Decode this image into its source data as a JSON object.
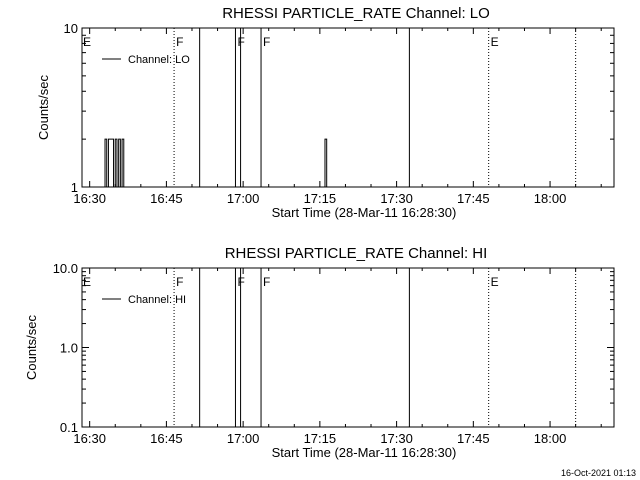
{
  "chart_data": [
    {
      "type": "line",
      "title": "RHESSI PARTICLE_RATE Channel: LO",
      "xlabel": "Start Time (28-Mar-11 16:28:30)",
      "ylabel": "Counts/sec",
      "ylog": true,
      "ylim": [
        1,
        10
      ],
      "xlim": [
        "16:28:30",
        "18:12:30"
      ],
      "x_tick_labels": [
        "16:30",
        "16:45",
        "17:00",
        "17:15",
        "17:30",
        "17:45",
        "18:00"
      ],
      "y_tick_labels": [
        "1",
        "10"
      ],
      "legend": {
        "placement": "top-left",
        "entries": [
          "Channel: LO"
        ]
      },
      "series": [
        {
          "name": "Channel: LO",
          "points": [
            [
              "16:33:00",
              1
            ],
            [
              "16:33:00",
              2
            ],
            [
              "16:33:20",
              2
            ],
            [
              "16:33:20",
              1
            ],
            [
              "16:33:40",
              1
            ],
            [
              "16:33:40",
              2
            ],
            [
              "16:34:40",
              2
            ],
            [
              "16:34:40",
              1
            ],
            [
              "16:35:00",
              1
            ],
            [
              "16:35:00",
              2
            ],
            [
              "16:35:20",
              2
            ],
            [
              "16:35:20",
              1
            ],
            [
              "16:35:40",
              1
            ],
            [
              "16:35:40",
              2
            ],
            [
              "16:36:00",
              2
            ],
            [
              "16:36:00",
              1
            ],
            [
              "16:36:20",
              1
            ],
            [
              "16:36:20",
              2
            ],
            [
              "16:36:40",
              2
            ],
            [
              "16:36:40",
              1
            ],
            [
              "17:16:00",
              1
            ],
            [
              "17:16:00",
              2
            ],
            [
              "17:16:20",
              2
            ],
            [
              "17:16:20",
              1
            ]
          ]
        }
      ],
      "event_marks": [
        {
          "label": "E",
          "time": "16:28:30",
          "line": "none"
        },
        {
          "label": "F",
          "time": "16:46:30",
          "line": "dotted"
        },
        {
          "label": "",
          "time": "16:51:30",
          "line": "solid"
        },
        {
          "label": "F",
          "time": "16:58:30",
          "line": "solid"
        },
        {
          "label": "",
          "time": "16:59:30",
          "line": "solid"
        },
        {
          "label": "F",
          "time": "17:03:30",
          "line": "solid"
        },
        {
          "label": "",
          "time": "17:32:30",
          "line": "solid"
        },
        {
          "label": "E",
          "time": "17:48:00",
          "line": "dotted"
        },
        {
          "label": "",
          "time": "18:05:00",
          "line": "dotted"
        }
      ]
    },
    {
      "type": "line",
      "title": "RHESSI PARTICLE_RATE Channel: HI",
      "xlabel": "Start Time (28-Mar-11 16:28:30)",
      "ylabel": "Counts/sec",
      "ylog": true,
      "ylim": [
        0.1,
        10
      ],
      "xlim": [
        "16:28:30",
        "18:12:30"
      ],
      "x_tick_labels": [
        "16:30",
        "16:45",
        "17:00",
        "17:15",
        "17:30",
        "17:45",
        "18:00"
      ],
      "y_tick_labels": [
        "0.1",
        "1.0",
        "10.0"
      ],
      "legend": {
        "placement": "top-left",
        "entries": [
          "Channel: HI"
        ]
      },
      "series": [
        {
          "name": "Channel: HI",
          "points": []
        }
      ],
      "event_marks": [
        {
          "label": "E",
          "time": "16:28:30",
          "line": "none"
        },
        {
          "label": "F",
          "time": "16:46:30",
          "line": "dotted"
        },
        {
          "label": "",
          "time": "16:51:30",
          "line": "solid"
        },
        {
          "label": "F",
          "time": "16:58:30",
          "line": "solid"
        },
        {
          "label": "",
          "time": "16:59:30",
          "line": "solid"
        },
        {
          "label": "F",
          "time": "17:03:30",
          "line": "solid"
        },
        {
          "label": "",
          "time": "17:32:30",
          "line": "solid"
        },
        {
          "label": "E",
          "time": "17:48:00",
          "line": "dotted"
        },
        {
          "label": "",
          "time": "18:05:00",
          "line": "dotted"
        }
      ]
    }
  ],
  "timestamp": "16-Oct-2021 01:13",
  "colors": {
    "background": "#ffffff",
    "foreground": "#000000"
  }
}
